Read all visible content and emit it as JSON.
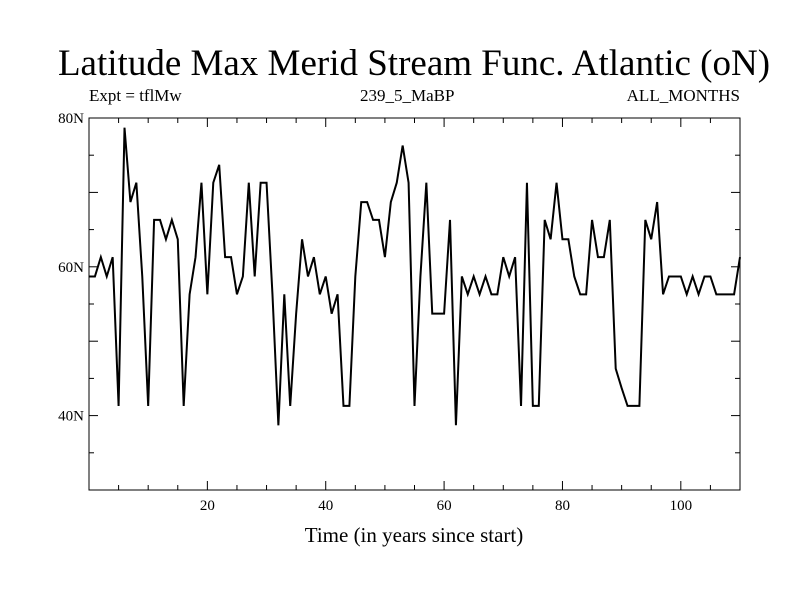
{
  "chart_data": {
    "type": "line",
    "title": "Latitude Max Merid Stream Func. Atlantic (oN)",
    "annotations": {
      "left": "Expt = tflMw",
      "center": "239_5_MaBP",
      "right": "ALL_MONTHS"
    },
    "xlabel": "Time (in years since start)",
    "ylabel": "",
    "xlim": [
      0,
      110
    ],
    "ylim": [
      30,
      80
    ],
    "x_ticks": [
      {
        "value": 20,
        "label": "20"
      },
      {
        "value": 40,
        "label": "40"
      },
      {
        "value": 60,
        "label": "60"
      },
      {
        "value": 80,
        "label": "80"
      },
      {
        "value": 100,
        "label": "100"
      }
    ],
    "y_ticks": [
      {
        "value": 40,
        "label": "40N"
      },
      {
        "value": 60,
        "label": "60N"
      },
      {
        "value": 80,
        "label": "80N"
      }
    ],
    "grid": false,
    "legend": "none",
    "series": [
      {
        "x": [
          0,
          1,
          2,
          3,
          4,
          5,
          6,
          7,
          8,
          9,
          10,
          11,
          12,
          13,
          14,
          15,
          16,
          17,
          18,
          19,
          20,
          21,
          22,
          23,
          24,
          25,
          26,
          27,
          28,
          29,
          30,
          31,
          32,
          33,
          34,
          35,
          36,
          37,
          38,
          39,
          40,
          41,
          42,
          43,
          44,
          45,
          46,
          47,
          48,
          49,
          50,
          51,
          52,
          53,
          54,
          55,
          56,
          57,
          58,
          59,
          60,
          61,
          62,
          63,
          64,
          65,
          66,
          67,
          68,
          69,
          70,
          71,
          72,
          73,
          74,
          75,
          76,
          77,
          78,
          79,
          80,
          81,
          82,
          83,
          84,
          85,
          86,
          87,
          88,
          89,
          90,
          91,
          92,
          93,
          94,
          95,
          96,
          97,
          98,
          99,
          100,
          101,
          102,
          103,
          104,
          105,
          106,
          107,
          108,
          109,
          110
        ],
        "values": [
          58.7,
          58.7,
          61.3,
          58.7,
          61.3,
          41.3,
          78.7,
          68.7,
          71.3,
          58.7,
          41.3,
          66.3,
          66.3,
          63.7,
          66.3,
          63.7,
          41.3,
          56.3,
          61.3,
          71.3,
          56.3,
          71.3,
          73.7,
          61.3,
          61.3,
          56.3,
          58.7,
          71.3,
          58.7,
          71.3,
          71.3,
          56.3,
          38.7,
          56.3,
          41.3,
          53.7,
          63.7,
          58.7,
          61.3,
          56.3,
          58.7,
          53.7,
          56.3,
          41.3,
          41.3,
          58.7,
          68.7,
          68.7,
          66.3,
          66.3,
          61.3,
          68.7,
          71.3,
          76.3,
          71.3,
          41.3,
          58.7,
          71.3,
          53.7,
          53.7,
          53.7,
          66.3,
          38.7,
          58.7,
          56.3,
          58.7,
          56.3,
          58.7,
          56.3,
          56.3,
          61.3,
          58.7,
          61.3,
          41.3,
          71.3,
          41.3,
          41.3,
          66.3,
          63.7,
          71.3,
          63.7,
          63.7,
          58.7,
          56.3,
          56.3,
          66.3,
          61.3,
          61.3,
          66.3,
          46.3,
          43.7,
          41.3,
          41.3,
          41.3,
          66.3,
          63.7,
          68.7,
          56.3,
          58.7,
          58.7,
          58.7,
          56.3,
          58.7,
          56.3,
          58.7,
          58.7,
          56.3,
          56.3,
          56.3,
          56.3,
          61.3
        ]
      }
    ]
  }
}
